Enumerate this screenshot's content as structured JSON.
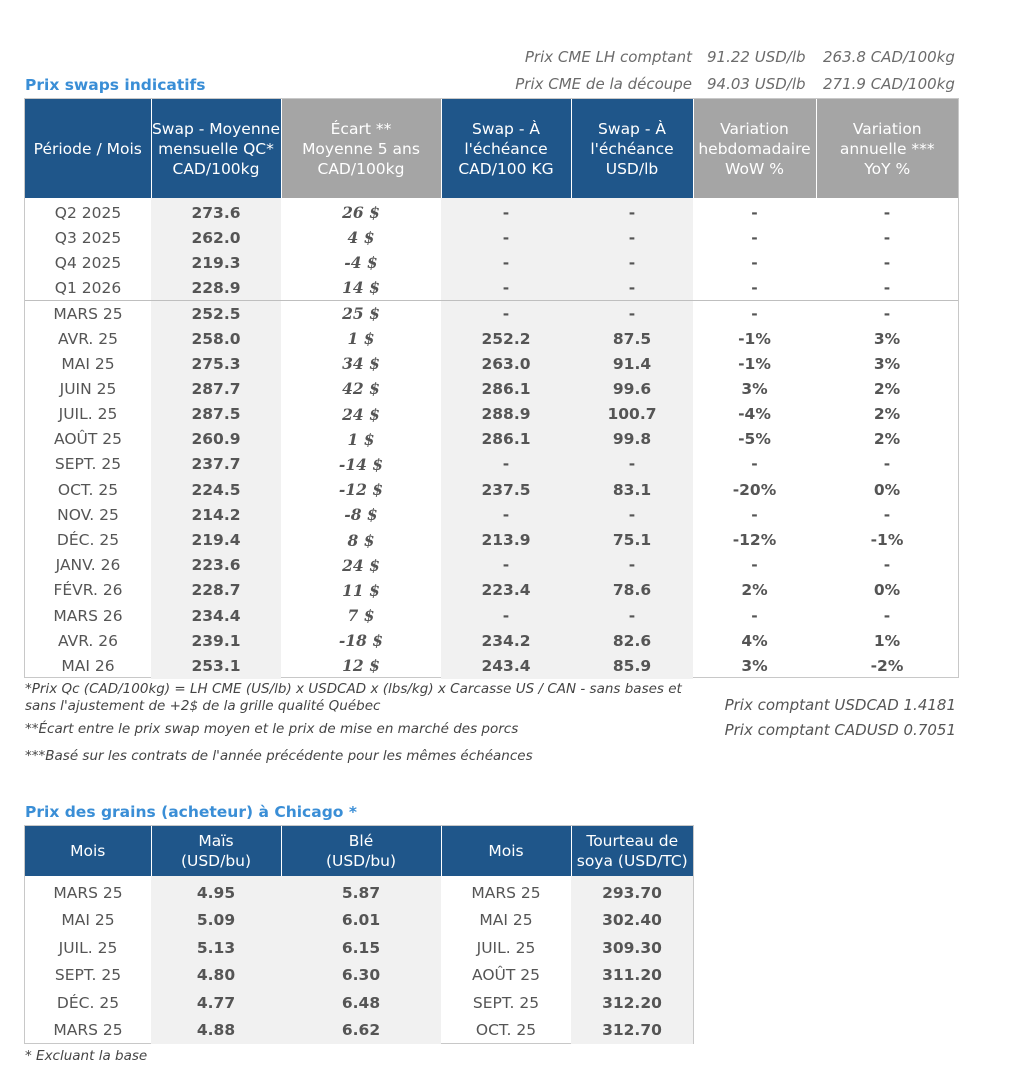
{
  "header": {
    "lines": [
      {
        "label": "Prix CME LH comptant",
        "usd": "91.22 USD/lb",
        "cad": "263.8 CAD/100kg"
      },
      {
        "label": "Prix CME de la découpe",
        "usd": "94.03 USD/lb",
        "cad": "271.9 CAD/100kg"
      }
    ]
  },
  "swaps": {
    "title": "Prix swaps indicatifs",
    "columns": [
      "Période / Mois",
      "Swap - Moyenne mensuelle QC* CAD/100kg",
      "Écart ** Moyenne 5 ans CAD/100kg",
      "Swap - À l'échéance CAD/100 KG",
      "Swap - À l'échéance USD/lb",
      "Variation hebdomadaire WoW %",
      "Variation annuelle *** YoY %"
    ],
    "columns_lines": [
      [
        "Période / Mois"
      ],
      [
        "Swap - Moyenne",
        "mensuelle QC*",
        "CAD/100kg"
      ],
      [
        "Écart **",
        "Moyenne 5 ans",
        "CAD/100kg"
      ],
      [
        "Swap - À",
        "l'échéance",
        "CAD/100 KG"
      ],
      [
        "Swap - À",
        "l'échéance",
        "USD/lb"
      ],
      [
        "Variation",
        "hebdomadaire",
        "WoW %"
      ],
      [
        "Variation",
        "annuelle ***",
        "YoY %"
      ]
    ],
    "quarters": [
      {
        "period": "Q2 2025",
        "swap": "273.6",
        "ecart": "26 $",
        "ecart_sign": "pos",
        "cad": "-",
        "usd": "-",
        "wow": "-",
        "wow_sign": "dash",
        "yoy": "-",
        "yoy_sign": "dash"
      },
      {
        "period": "Q3 2025",
        "swap": "262.0",
        "ecart": "4 $",
        "ecart_sign": "pos",
        "cad": "-",
        "usd": "-",
        "wow": "-",
        "wow_sign": "dash",
        "yoy": "-",
        "yoy_sign": "dash"
      },
      {
        "period": "Q4 2025",
        "swap": "219.3",
        "ecart": "-4 $",
        "ecart_sign": "neg",
        "cad": "-",
        "usd": "-",
        "wow": "-",
        "wow_sign": "dash",
        "yoy": "-",
        "yoy_sign": "dash"
      },
      {
        "period": "Q1 2026",
        "swap": "228.9",
        "ecart": "14 $",
        "ecart_sign": "pos",
        "cad": "-",
        "usd": "-",
        "wow": "-",
        "wow_sign": "dash",
        "yoy": "-",
        "yoy_sign": "dash"
      }
    ],
    "months": [
      {
        "period": "MARS 25",
        "swap": "252.5",
        "ecart": "25 $",
        "ecart_sign": "pos",
        "cad": "-",
        "usd": "-",
        "wow": "-",
        "wow_sign": "dash",
        "yoy": "-",
        "yoy_sign": "dash"
      },
      {
        "period": "AVR. 25",
        "swap": "258.0",
        "ecart": "1 $",
        "ecart_sign": "pos",
        "cad": "252.2",
        "usd": "87.5",
        "wow": "-1%",
        "wow_sign": "neg",
        "yoy": "3%",
        "yoy_sign": "pos"
      },
      {
        "period": "MAI 25",
        "swap": "275.3",
        "ecart": "34 $",
        "ecart_sign": "pos",
        "cad": "263.0",
        "usd": "91.4",
        "wow": "-1%",
        "wow_sign": "neg",
        "yoy": "3%",
        "yoy_sign": "pos"
      },
      {
        "period": "JUIN 25",
        "swap": "287.7",
        "ecart": "42 $",
        "ecart_sign": "pos",
        "cad": "286.1",
        "usd": "99.6",
        "wow": "3%",
        "wow_sign": "pos",
        "yoy": "2%",
        "yoy_sign": "pos"
      },
      {
        "period": "JUIL. 25",
        "swap": "287.5",
        "ecart": "24 $",
        "ecart_sign": "pos",
        "cad": "288.9",
        "usd": "100.7",
        "wow": "-4%",
        "wow_sign": "neg",
        "yoy": "2%",
        "yoy_sign": "pos"
      },
      {
        "period": "AOÛT 25",
        "swap": "260.9",
        "ecart": "1 $",
        "ecart_sign": "pos",
        "cad": "286.1",
        "usd": "99.8",
        "wow": "-5%",
        "wow_sign": "neg",
        "yoy": "2%",
        "yoy_sign": "pos"
      },
      {
        "period": "SEPT. 25",
        "swap": "237.7",
        "ecart": "-14 $",
        "ecart_sign": "neg",
        "cad": "-",
        "usd": "-",
        "wow": "-",
        "wow_sign": "dash",
        "yoy": "-",
        "yoy_sign": "dash"
      },
      {
        "period": "OCT. 25",
        "swap": "224.5",
        "ecart": "-12 $",
        "ecart_sign": "neg",
        "cad": "237.5",
        "usd": "83.1",
        "wow": "-20%",
        "wow_sign": "neg",
        "yoy": "0%",
        "yoy_sign": "neg"
      },
      {
        "period": "NOV. 25",
        "swap": "214.2",
        "ecart": "-8 $",
        "ecart_sign": "neg",
        "cad": "-",
        "usd": "-",
        "wow": "-",
        "wow_sign": "dash",
        "yoy": "-",
        "yoy_sign": "dash"
      },
      {
        "period": "DÉC. 25",
        "swap": "219.4",
        "ecart": "8 $",
        "ecart_sign": "pos",
        "cad": "213.9",
        "usd": "75.1",
        "wow": "-12%",
        "wow_sign": "neg",
        "yoy": "-1%",
        "yoy_sign": "neg"
      },
      {
        "period": "JANV. 26",
        "swap": "223.6",
        "ecart": "24 $",
        "ecart_sign": "pos",
        "cad": "-",
        "usd": "-",
        "wow": "-",
        "wow_sign": "dash",
        "yoy": "-",
        "yoy_sign": "dash"
      },
      {
        "period": "FÉVR. 26",
        "swap": "228.7",
        "ecart": "11 $",
        "ecart_sign": "pos",
        "cad": "223.4",
        "usd": "78.6",
        "wow": "2%",
        "wow_sign": "pos",
        "yoy": "0%",
        "yoy_sign": "pos"
      },
      {
        "period": "MARS 26",
        "swap": "234.4",
        "ecart": "7 $",
        "ecart_sign": "pos",
        "cad": "-",
        "usd": "-",
        "wow": "-",
        "wow_sign": "dash",
        "yoy": "-",
        "yoy_sign": "dash"
      },
      {
        "period": "AVR. 26",
        "swap": "239.1",
        "ecart": "-18 $",
        "ecart_sign": "neg",
        "cad": "234.2",
        "usd": "82.6",
        "wow": "4%",
        "wow_sign": "pos",
        "yoy": "1%",
        "yoy_sign": "pos"
      },
      {
        "period": "MAI 26",
        "swap": "253.1",
        "ecart": "12 $",
        "ecart_sign": "pos",
        "cad": "243.4",
        "usd": "85.9",
        "wow": "3%",
        "wow_sign": "pos",
        "yoy": "-2%",
        "yoy_sign": "neg"
      }
    ],
    "footnotes": [
      "*Prix Qc (CAD/100kg) = LH CME (US/lb) x USDCAD x (lbs/kg) x Carcasse US / CAN - sans bases et",
      "sans l'ajustement de +2$ de la grille qualité Québec",
      "**Écart entre le prix swap moyen et le prix de mise en marché des porcs",
      "***Basé sur les contrats de l'année précédente pour les mêmes échéances"
    ],
    "fx": [
      "Prix comptant USDCAD 1.4181",
      "Prix comptant CADUSD 0.7051"
    ]
  },
  "grains": {
    "title": "Prix des grains (acheteur) à Chicago *",
    "columns_lines": [
      [
        "Mois"
      ],
      [
        "Maïs",
        "(USD/bu)"
      ],
      [
        "Blé",
        "(USD/bu)"
      ],
      [
        "Mois"
      ],
      [
        "Tourteau de",
        "soya (USD/TC)"
      ]
    ],
    "rows": [
      {
        "mois1": "MARS 25",
        "mais": "4.95",
        "ble": "5.87",
        "mois2": "MARS 25",
        "soya": "293.70"
      },
      {
        "mois1": "MAI 25",
        "mais": "5.09",
        "ble": "6.01",
        "mois2": "MAI 25",
        "soya": "302.40"
      },
      {
        "mois1": "JUIL. 25",
        "mais": "5.13",
        "ble": "6.15",
        "mois2": "JUIL. 25",
        "soya": "309.30"
      },
      {
        "mois1": "SEPT. 25",
        "mais": "4.80",
        "ble": "6.30",
        "mois2": "AOÛT 25",
        "soya": "311.20"
      },
      {
        "mois1": "DÉC. 25",
        "mais": "4.77",
        "ble": "6.48",
        "mois2": "SEPT. 25",
        "soya": "312.20"
      },
      {
        "mois1": "MARS 25",
        "mais": "4.88",
        "ble": "6.62",
        "mois2": "OCT. 25",
        "soya": "312.70"
      }
    ],
    "footnote": "* Excluant la base"
  },
  "colors": {
    "header_blue": "#1f568a",
    "header_grey": "#a5a5a5",
    "title_blue": "#3a8ed6",
    "positive": "#2d7a1f",
    "negative": "#b81c1c"
  }
}
